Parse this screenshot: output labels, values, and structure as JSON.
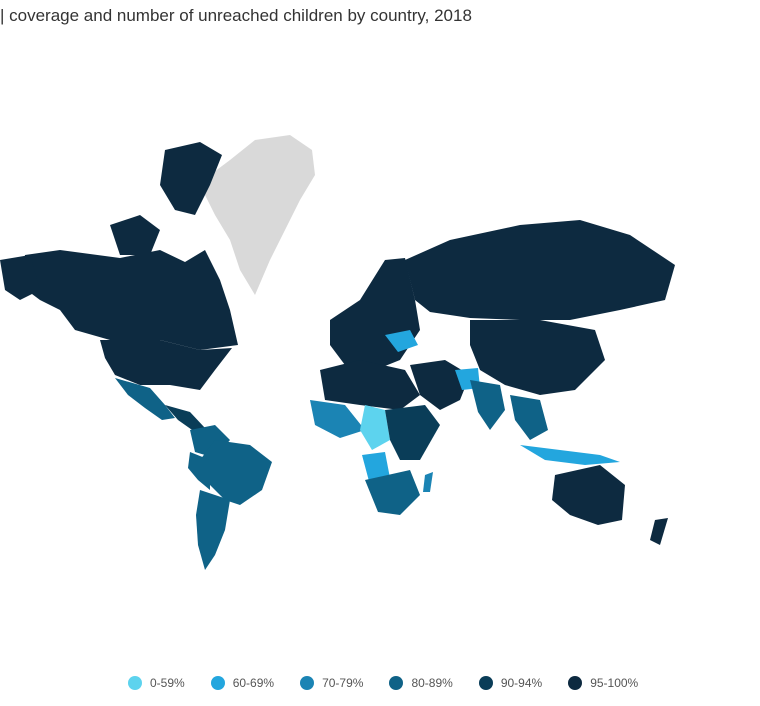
{
  "title": "| coverage and number of unreached children by country, 2018",
  "colors": {
    "c0": "#5dd3ee",
    "c60": "#23a6de",
    "c70": "#1b84b4",
    "c80": "#0f6287",
    "c90": "#0a3d58",
    "c95": "#0d2a40",
    "nodata": "#d9d9d9"
  },
  "legend": [
    {
      "label": "0-59%",
      "color": "#5dd3ee"
    },
    {
      "label": "60-69%",
      "color": "#23a6de"
    },
    {
      "label": "70-79%",
      "color": "#1b84b4"
    },
    {
      "label": "80-89%",
      "color": "#0f6287"
    },
    {
      "label": "90-94%",
      "color": "#0a3d58"
    },
    {
      "label": "95-100%",
      "color": "#0d2a40"
    }
  ]
}
